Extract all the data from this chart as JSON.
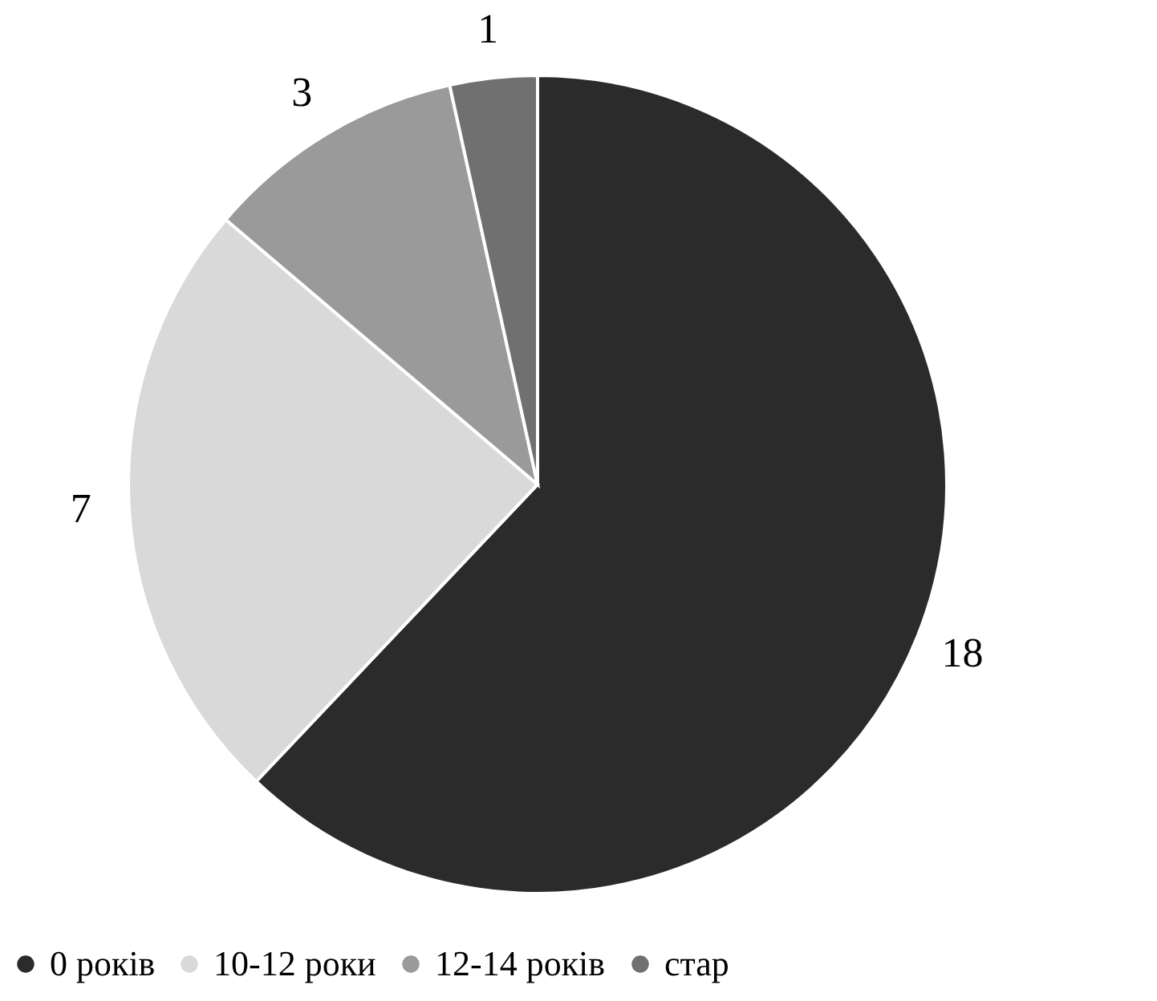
{
  "chart_data": {
    "type": "pie",
    "categories": [
      "0 років",
      "10-12 роки",
      "12-14 років",
      "стар"
    ],
    "values": [
      18,
      7,
      3,
      1
    ],
    "colors": [
      "#2b2b2b",
      "#d9d9d9",
      "#9a9a9a",
      "#707070"
    ],
    "data_labels": true,
    "legend": "bottom"
  }
}
